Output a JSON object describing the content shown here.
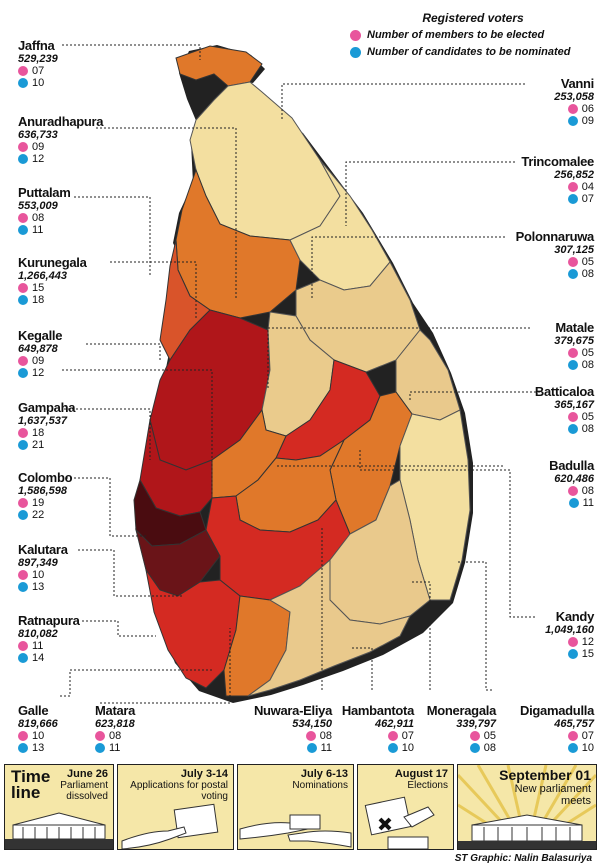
{
  "legend": {
    "title": "Registered voters",
    "members_label": "Number of members to be elected",
    "candidates_label": "Number of candidates to be nominated"
  },
  "districts": {
    "jaffna": {
      "name": "Jaffna",
      "voters": "529,239",
      "members": "07",
      "candidates": "10"
    },
    "anuradhapura": {
      "name": "Anuradhapura",
      "voters": "636,733",
      "members": "09",
      "candidates": "12"
    },
    "puttalam": {
      "name": "Puttalam",
      "voters": "553,009",
      "members": "08",
      "candidates": "11"
    },
    "kurunegala": {
      "name": "Kurunegala",
      "voters": "1,266,443",
      "members": "15",
      "candidates": "18"
    },
    "kegalle": {
      "name": "Kegalle",
      "voters": "649,878",
      "members": "09",
      "candidates": "12"
    },
    "gampaha": {
      "name": "Gampaha",
      "voters": "1,637,537",
      "members": "18",
      "candidates": "21"
    },
    "colombo": {
      "name": "Colombo",
      "voters": "1,586,598",
      "members": "19",
      "candidates": "22"
    },
    "kalutara": {
      "name": "Kalutara",
      "voters": "897,349",
      "members": "10",
      "candidates": "13"
    },
    "ratnapura": {
      "name": "Ratnapura",
      "voters": "810,082",
      "members": "11",
      "candidates": "14"
    },
    "galle": {
      "name": "Galle",
      "voters": "819,666",
      "members": "10",
      "candidates": "13"
    },
    "matara": {
      "name": "Matara",
      "voters": "623,818",
      "members": "08",
      "candidates": "11"
    },
    "nuwara_eliya": {
      "name": "Nuwara-Eliya",
      "voters": "534,150",
      "members": "08",
      "candidates": "11"
    },
    "hambantota": {
      "name": "Hambantota",
      "voters": "462,911",
      "members": "07",
      "candidates": "10"
    },
    "moneragala": {
      "name": "Moneragala",
      "voters": "339,797",
      "members": "05",
      "candidates": "08"
    },
    "digamadulla": {
      "name": "Digamadulla",
      "voters": "465,757",
      "members": "07",
      "candidates": "10"
    },
    "vanni": {
      "name": "Vanni",
      "voters": "253,058",
      "members": "06",
      "candidates": "09"
    },
    "trincomalee": {
      "name": "Trincomalee",
      "voters": "256,852",
      "members": "04",
      "candidates": "07"
    },
    "polonnaruwa": {
      "name": "Polonnaruwa",
      "voters": "307,125",
      "members": "05",
      "candidates": "08"
    },
    "matale": {
      "name": "Matale",
      "voters": "379,675",
      "members": "05",
      "candidates": "08"
    },
    "batticaloa": {
      "name": "Batticaloa",
      "voters": "365,167",
      "members": "05",
      "candidates": "08"
    },
    "badulla": {
      "name": "Badulla",
      "voters": "620,486",
      "members": "08",
      "candidates": "11"
    },
    "kandy": {
      "name": "Kandy",
      "voters": "1,049,160",
      "members": "12",
      "candidates": "15"
    }
  },
  "timeline": {
    "title_1": "Time",
    "title_2": "line",
    "events": [
      {
        "date": "June 26",
        "text": "Parliament dissolved"
      },
      {
        "date": "July 3-14",
        "text": "Applications for postal voting"
      },
      {
        "date": "July 6-13",
        "text": "Nominations"
      },
      {
        "date": "August 17",
        "text": "Elections"
      },
      {
        "date": "September 01",
        "text": "New parliament meets"
      }
    ]
  },
  "credit": "ST Graphic: Nalin Balasuriya",
  "colors": {
    "pink": "#e8559c",
    "blue": "#1a9ad6",
    "lightest": "#f3dfa0",
    "light": "#e9c98c",
    "orange": "#e0782a",
    "redorange": "#d9542a",
    "red": "#d42a22",
    "darkred": "#b0161a",
    "maroon": "#5a1012"
  }
}
